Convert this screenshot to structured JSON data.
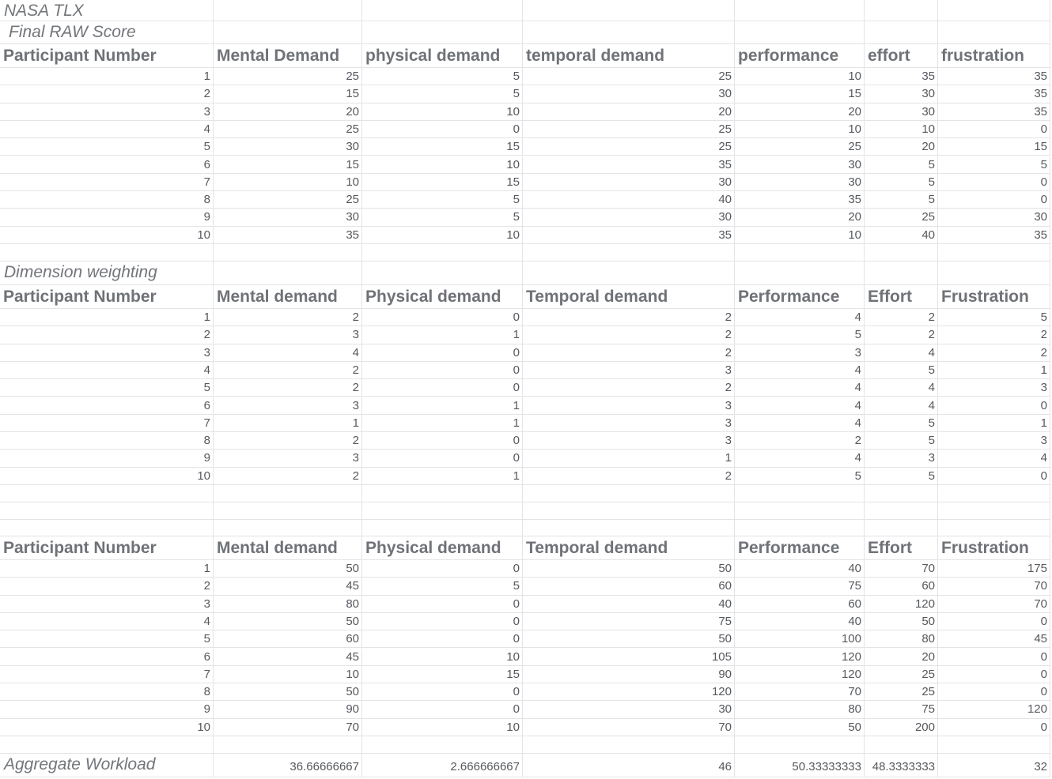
{
  "sheet": {
    "title": "NASA TLX",
    "section_raw": " Final RAW Score",
    "section_weight": "Dimension weighting",
    "aggregate_label": "Aggregate Workload",
    "header_participant": "Participant Number",
    "raw_headers": [
      "Mental Demand",
      "physical demand",
      "temporal demand",
      "performance",
      "effort",
      "frustration"
    ],
    "weight_headers": [
      "Mental demand",
      "Physical demand",
      "Temporal demand",
      "Performance",
      "Effort",
      "Frustration"
    ],
    "weighted_headers": [
      "Mental demand",
      "Physical demand",
      "Temporal demand",
      "Performance",
      "Effort",
      "Frustration"
    ],
    "raw_rows": [
      [
        "1",
        "25",
        "5",
        "25",
        "10",
        "35",
        "35"
      ],
      [
        "2",
        "15",
        "5",
        "30",
        "15",
        "30",
        "35"
      ],
      [
        "3",
        "20",
        "10",
        "20",
        "20",
        "30",
        "35"
      ],
      [
        "4",
        "25",
        "0",
        "25",
        "10",
        "10",
        "0"
      ],
      [
        "5",
        "30",
        "15",
        "25",
        "25",
        "20",
        "15"
      ],
      [
        "6",
        "15",
        "10",
        "35",
        "30",
        "5",
        "5"
      ],
      [
        "7",
        "10",
        "15",
        "30",
        "30",
        "5",
        "0"
      ],
      [
        "8",
        "25",
        "5",
        "40",
        "35",
        "5",
        "0"
      ],
      [
        "9",
        "30",
        "5",
        "30",
        "20",
        "25",
        "30"
      ],
      [
        "10",
        "35",
        "10",
        "35",
        "10",
        "40",
        "35"
      ]
    ],
    "weight_rows": [
      [
        "1",
        "2",
        "0",
        "2",
        "4",
        "2",
        "5"
      ],
      [
        "2",
        "3",
        "1",
        "2",
        "5",
        "2",
        "2"
      ],
      [
        "3",
        "4",
        "0",
        "2",
        "3",
        "4",
        "2"
      ],
      [
        "4",
        "2",
        "0",
        "3",
        "4",
        "5",
        "1"
      ],
      [
        "5",
        "2",
        "0",
        "2",
        "4",
        "4",
        "3"
      ],
      [
        "6",
        "3",
        "1",
        "3",
        "4",
        "4",
        "0"
      ],
      [
        "7",
        "1",
        "1",
        "3",
        "4",
        "5",
        "1"
      ],
      [
        "8",
        "2",
        "0",
        "3",
        "2",
        "5",
        "3"
      ],
      [
        "9",
        "3",
        "0",
        "1",
        "4",
        "3",
        "4"
      ],
      [
        "10",
        "2",
        "1",
        "2",
        "5",
        "5",
        "0"
      ]
    ],
    "weighted_rows": [
      [
        "1",
        "50",
        "0",
        "50",
        "40",
        "70",
        "175"
      ],
      [
        "2",
        "45",
        "5",
        "60",
        "75",
        "60",
        "70"
      ],
      [
        "3",
        "80",
        "0",
        "40",
        "60",
        "120",
        "70"
      ],
      [
        "4",
        "50",
        "0",
        "75",
        "40",
        "50",
        "0"
      ],
      [
        "5",
        "60",
        "0",
        "50",
        "100",
        "80",
        "45"
      ],
      [
        "6",
        "45",
        "10",
        "105",
        "120",
        "20",
        "0"
      ],
      [
        "7",
        "10",
        "15",
        "90",
        "120",
        "25",
        "0"
      ],
      [
        "8",
        "50",
        "0",
        "120",
        "70",
        "25",
        "0"
      ],
      [
        "9",
        "90",
        "0",
        "30",
        "80",
        "75",
        "120"
      ],
      [
        "10",
        "70",
        "10",
        "70",
        "50",
        "200",
        "0"
      ]
    ],
    "aggregate_values": [
      "36.66666667",
      "2.666666667",
      "46",
      "50.33333333",
      "48.3333333",
      "32"
    ]
  }
}
